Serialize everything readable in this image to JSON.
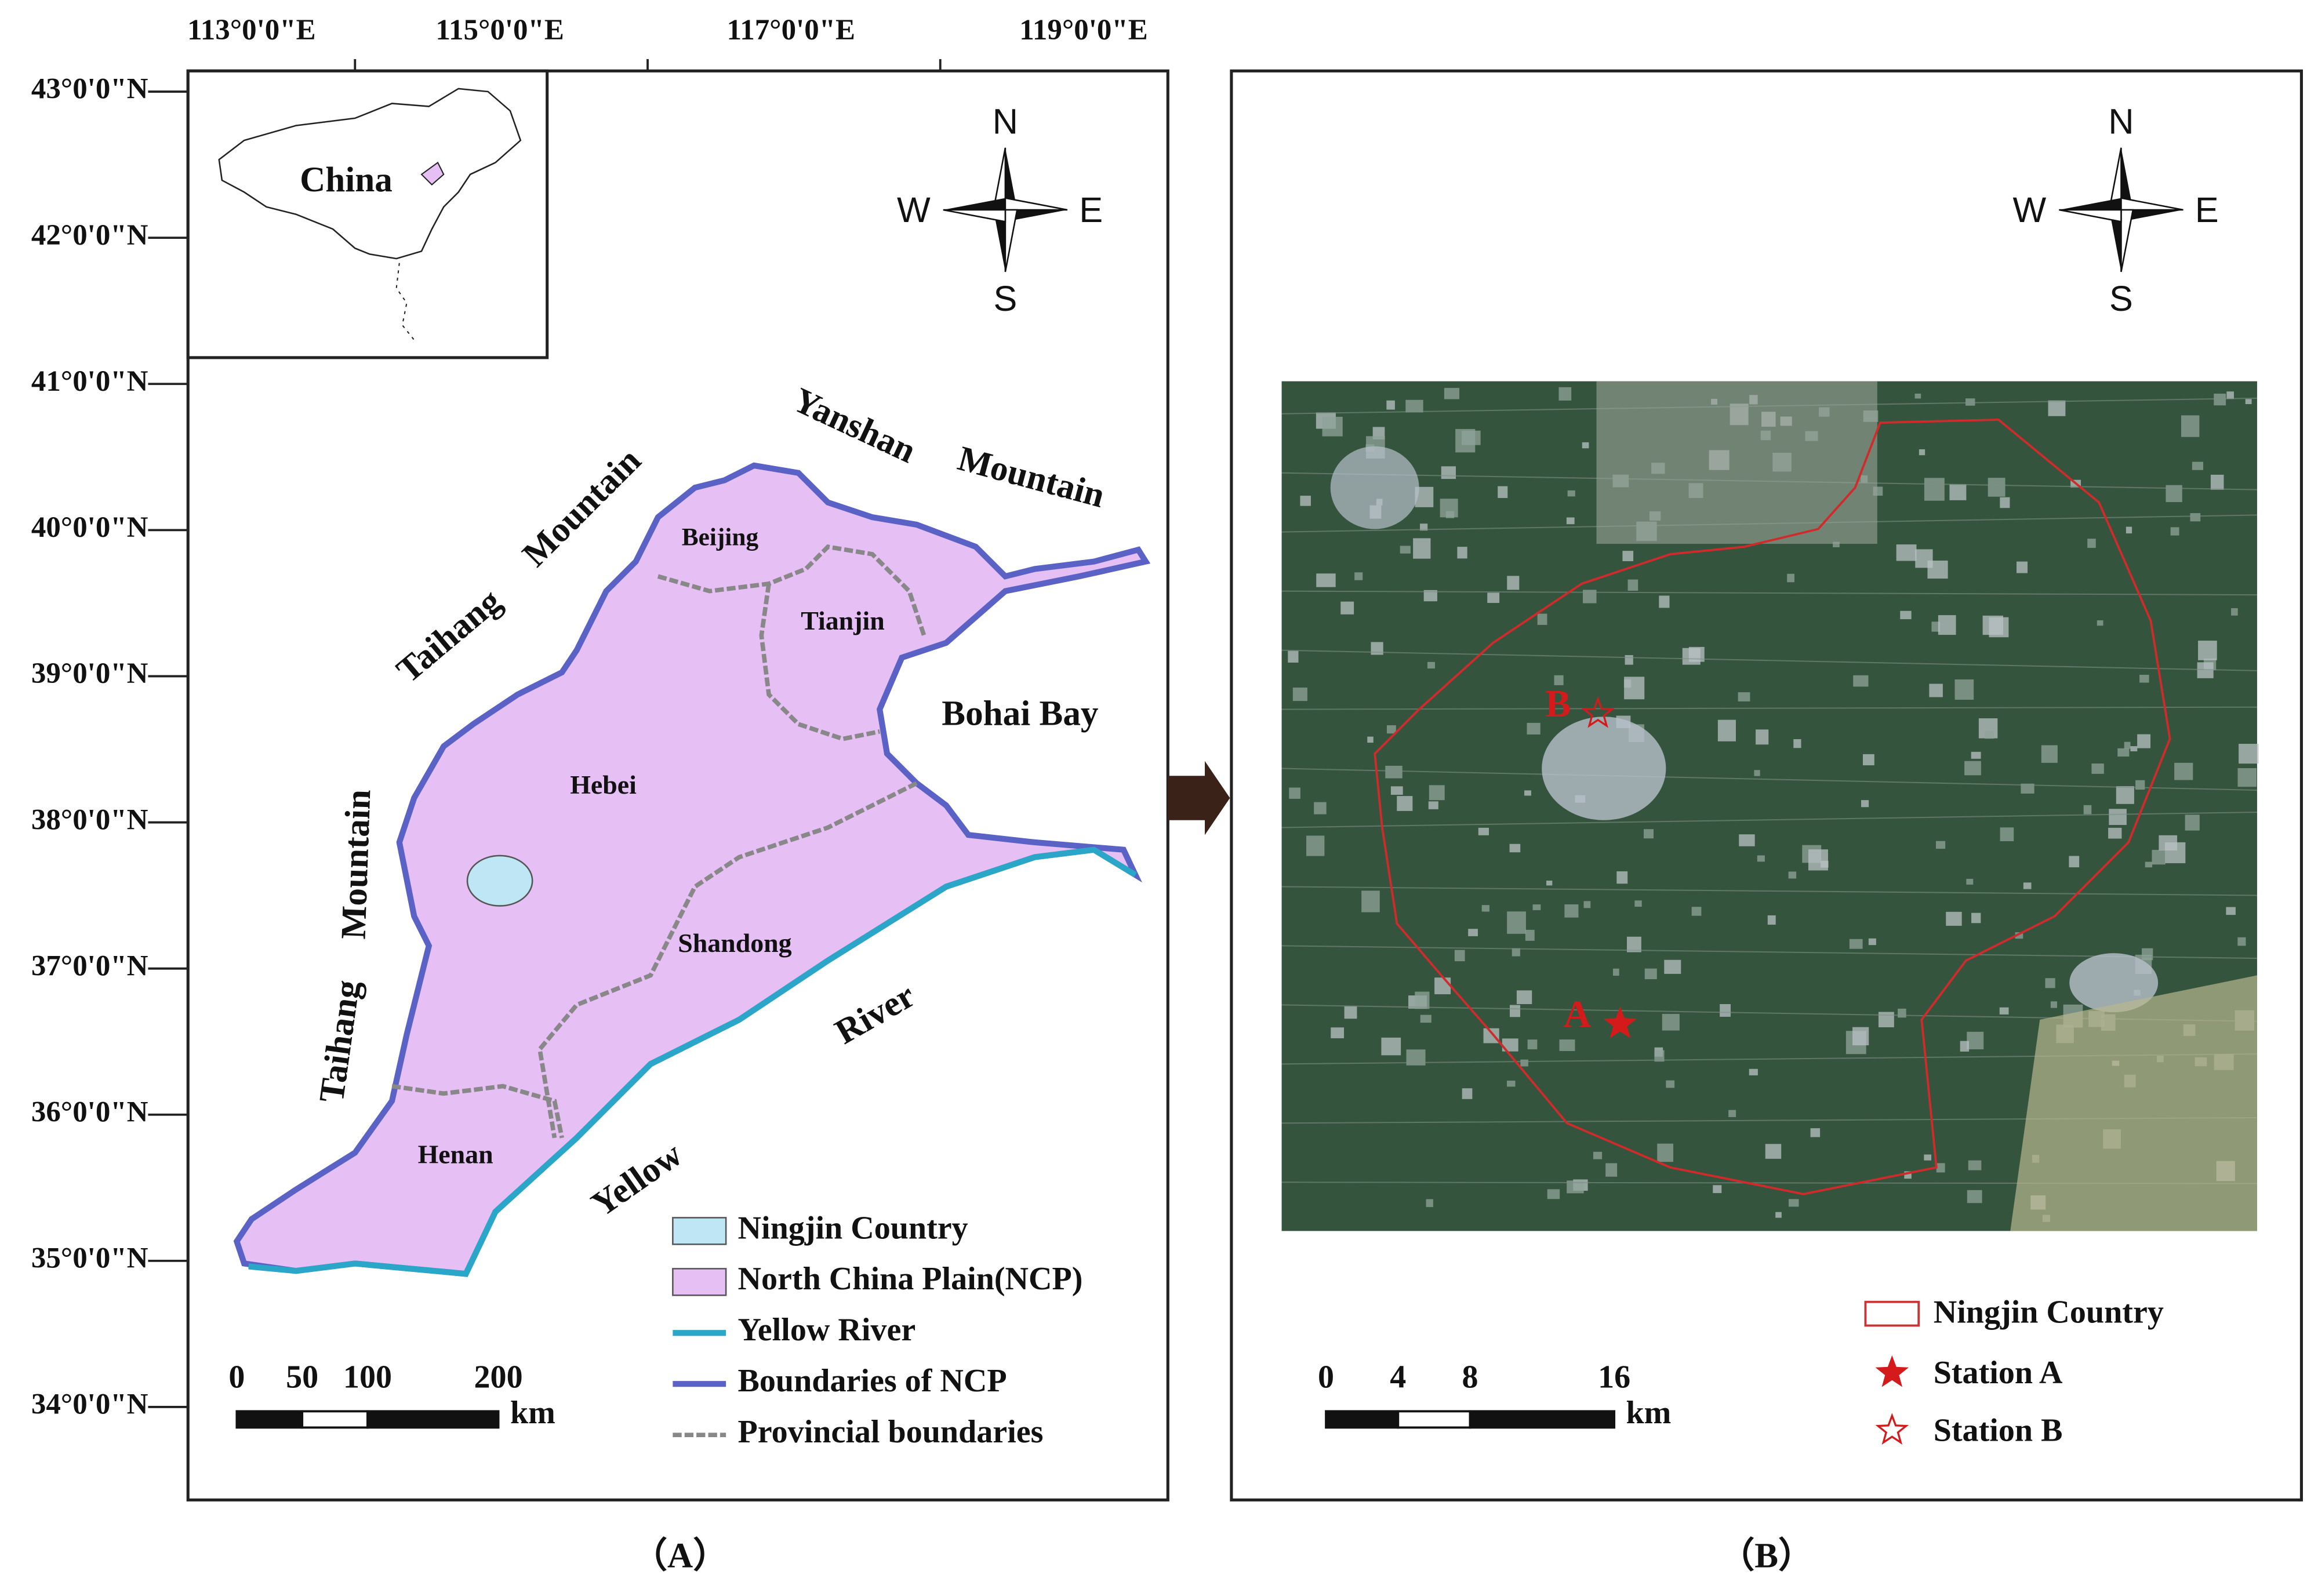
{
  "panel_a": {
    "longitude_labels": [
      "113°0'0\"E",
      "115°0'0\"E",
      "117°0'0\"E",
      "119°0'0\"E"
    ],
    "latitude_labels": [
      "43°0'0\"N",
      "42°0'0\"N",
      "41°0'0\"N",
      "40°0'0\"N",
      "39°0'0\"N",
      "38°0'0\"N",
      "37°0'0\"N",
      "36°0'0\"N",
      "35°0'0\"N",
      "34°0'0\"N"
    ],
    "compass": {
      "n": "N",
      "e": "E",
      "s": "S",
      "w": "W"
    },
    "inset_label": "China",
    "map_labels": [
      "Beijing",
      "Tianjin",
      "Hebei",
      "Shandong",
      "Henan",
      "Bohai Bay",
      "Yanshan",
      "Mountain",
      "Taihang",
      "Mountain",
      "Taihang",
      "Mountain",
      "Yellow",
      "River"
    ],
    "legend": [
      "Ningjin Country",
      "North China Plain(NCP)",
      "Yellow River",
      "Boundaries of NCP",
      "Provincial boundaries"
    ],
    "scale": {
      "ticks": [
        0,
        50,
        100,
        200
      ],
      "unit": "km"
    },
    "caption": "（A）"
  },
  "panel_b": {
    "compass": {
      "n": "N",
      "e": "E",
      "s": "S",
      "w": "W"
    },
    "station_labels": [
      "B",
      "A"
    ],
    "legend": [
      "Ningjin Country",
      "Station A",
      "Station B"
    ],
    "scale": {
      "ticks": [
        0,
        4,
        8,
        16
      ],
      "unit": "km"
    },
    "caption": "（B）"
  }
}
